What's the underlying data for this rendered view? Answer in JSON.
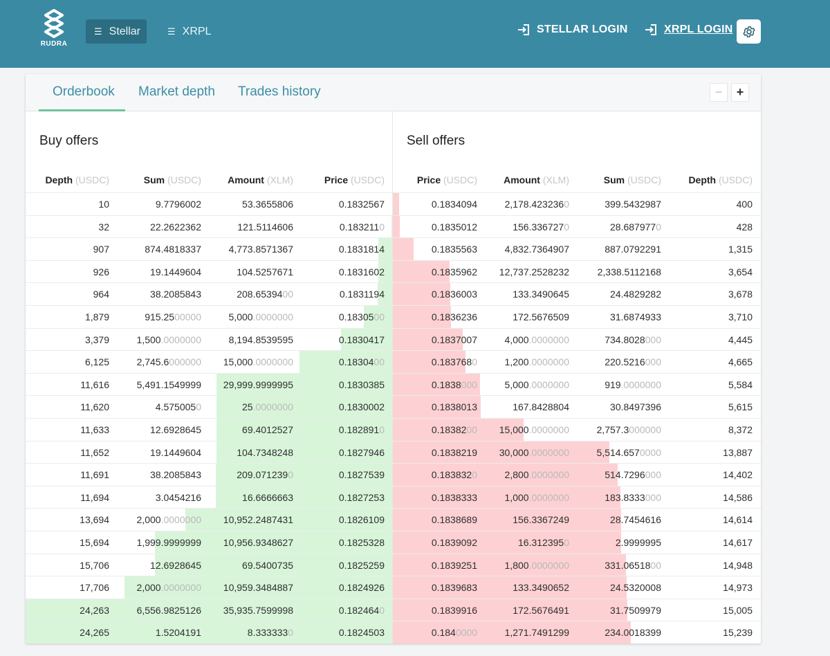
{
  "header": {
    "logo_text": "RUDRA",
    "networks": [
      {
        "label": "Stellar",
        "active": true
      },
      {
        "label": "XRPL",
        "active": false
      }
    ],
    "stellar_login": "STELLAR LOGIN",
    "xrpl_login": "XRPL LOGIN",
    "icons": {
      "menu": "menu-icon",
      "login": "login-icon",
      "settings": "gear-icon"
    }
  },
  "tabs": [
    "Orderbook",
    "Market depth",
    "Trades history"
  ],
  "zoom": {
    "minus": "−",
    "plus": "+"
  },
  "buy": {
    "title": "Buy offers",
    "columns": [
      {
        "label": "Depth",
        "unit": "(USDC)"
      },
      {
        "label": "Sum",
        "unit": "(USDC)"
      },
      {
        "label": "Amount",
        "unit": "(XLM)"
      },
      {
        "label": "Price",
        "unit": "(USDC)"
      }
    ],
    "rows": [
      {
        "depth": "10",
        "sum": [
          "9.7796002",
          ""
        ],
        "amount": [
          "53.3655806",
          ""
        ],
        "price": [
          "0.1832567",
          ""
        ],
        "fill": 0.0004
      },
      {
        "depth": "32",
        "sum": [
          "22.2622362",
          ""
        ],
        "amount": [
          "121.5114606",
          ""
        ],
        "price": [
          "0.183211",
          "0"
        ],
        "fill": 0.0013
      },
      {
        "depth": "907",
        "sum": [
          "874.4818337",
          ""
        ],
        "amount": [
          "4,773.8571367",
          ""
        ],
        "price": [
          "0.1831814",
          ""
        ],
        "fill": 0.037
      },
      {
        "depth": "926",
        "sum": [
          "19.1449604",
          ""
        ],
        "amount": [
          "104.5257671",
          ""
        ],
        "price": [
          "0.1831602",
          ""
        ],
        "fill": 0.038
      },
      {
        "depth": "964",
        "sum": [
          "38.2085843",
          ""
        ],
        "amount": [
          "208.65394",
          "00"
        ],
        "price": [
          "0.1831194",
          ""
        ],
        "fill": 0.04
      },
      {
        "depth": "1,879",
        "sum": [
          "915.25",
          "00000"
        ],
        "amount": [
          "5,000",
          ".0000000"
        ],
        "price": [
          "0.18305",
          "00"
        ],
        "fill": 0.077
      },
      {
        "depth": "3,379",
        "sum": [
          "1,500",
          ".0000000"
        ],
        "amount": [
          "8,194.8539595",
          ""
        ],
        "price": [
          "0.1830417",
          ""
        ],
        "fill": 0.139
      },
      {
        "depth": "6,125",
        "sum": [
          "2,745.6",
          "000000"
        ],
        "amount": [
          "15,000",
          ".0000000"
        ],
        "price": [
          "0.18304",
          "00"
        ],
        "fill": 0.252
      },
      {
        "depth": "11,616",
        "sum": [
          "5,491.1549999",
          ""
        ],
        "amount": [
          "29,999.9999995",
          ""
        ],
        "price": [
          "0.1830385",
          ""
        ],
        "fill": 0.479
      },
      {
        "depth": "11,620",
        "sum": [
          "4.575005",
          "0"
        ],
        "amount": [
          "25",
          ".0000000"
        ],
        "price": [
          "0.1830002",
          ""
        ],
        "fill": 0.479
      },
      {
        "depth": "11,633",
        "sum": [
          "12.6928645",
          ""
        ],
        "amount": [
          "69.4012527",
          ""
        ],
        "price": [
          "0.182891",
          "0"
        ],
        "fill": 0.479
      },
      {
        "depth": "11,652",
        "sum": [
          "19.1449604",
          ""
        ],
        "amount": [
          "104.7348248",
          ""
        ],
        "price": [
          "0.1827946",
          ""
        ],
        "fill": 0.48
      },
      {
        "depth": "11,691",
        "sum": [
          "38.2085843",
          ""
        ],
        "amount": [
          "209.071239",
          "0"
        ],
        "price": [
          "0.1827539",
          ""
        ],
        "fill": 0.482
      },
      {
        "depth": "11,694",
        "sum": [
          "3.0454216",
          ""
        ],
        "amount": [
          "16.6666663",
          ""
        ],
        "price": [
          "0.1827253",
          ""
        ],
        "fill": 0.482
      },
      {
        "depth": "13,694",
        "sum": [
          "2,000",
          ".0000000"
        ],
        "amount": [
          "10,952.2487431",
          ""
        ],
        "price": [
          "0.1826109",
          ""
        ],
        "fill": 0.564
      },
      {
        "depth": "15,694",
        "sum": [
          "1,999.9999999",
          ""
        ],
        "amount": [
          "10,956.9348627",
          ""
        ],
        "price": [
          "0.1825328",
          ""
        ],
        "fill": 0.647
      },
      {
        "depth": "15,706",
        "sum": [
          "12.6928645",
          ""
        ],
        "amount": [
          "69.5400735",
          ""
        ],
        "price": [
          "0.1825259",
          ""
        ],
        "fill": 0.647
      },
      {
        "depth": "17,706",
        "sum": [
          "2,000",
          ".0000000"
        ],
        "amount": [
          "10,959.3484887",
          ""
        ],
        "price": [
          "0.1824926",
          ""
        ],
        "fill": 0.73
      },
      {
        "depth": "24,263",
        "sum": [
          "6,556.9825126",
          ""
        ],
        "amount": [
          "35,935.7599998",
          ""
        ],
        "price": [
          "0.182464",
          "0"
        ],
        "fill": 1.0
      },
      {
        "depth": "24,265",
        "sum": [
          "1.5204191",
          ""
        ],
        "amount": [
          "8.333333",
          "0"
        ],
        "price": [
          "0.1824503",
          ""
        ],
        "fill": 1.0
      }
    ]
  },
  "sell": {
    "title": "Sell offers",
    "columns": [
      {
        "label": "Price",
        "unit": "(USDC)"
      },
      {
        "label": "Amount",
        "unit": "(XLM)"
      },
      {
        "label": "Sum",
        "unit": "(USDC)"
      },
      {
        "label": "Depth",
        "unit": "(USDC)"
      }
    ],
    "rows": [
      {
        "price": [
          "0.1834094",
          ""
        ],
        "amount": [
          "2,178.423236",
          "0"
        ],
        "sum": [
          "399.5432987",
          ""
        ],
        "depth": "400",
        "fill": 0.017
      },
      {
        "price": [
          "0.1835012",
          ""
        ],
        "amount": [
          "156.336727",
          "0"
        ],
        "sum": [
          "28.687977",
          "0"
        ],
        "depth": "428",
        "fill": 0.018
      },
      {
        "price": [
          "0.1835563",
          ""
        ],
        "amount": [
          "4,832.7364907",
          ""
        ],
        "sum": [
          "887.0792291",
          ""
        ],
        "depth": "1,315",
        "fill": 0.056
      },
      {
        "price": [
          "0.1835962",
          ""
        ],
        "amount": [
          "12,737.2528232",
          ""
        ],
        "sum": [
          "2,338.5112168",
          ""
        ],
        "depth": "3,654",
        "fill": 0.155
      },
      {
        "price": [
          "0.1836003",
          ""
        ],
        "amount": [
          "133.3490645",
          ""
        ],
        "sum": [
          "24.4829282",
          ""
        ],
        "depth": "3,678",
        "fill": 0.156
      },
      {
        "price": [
          "0.1836236",
          ""
        ],
        "amount": [
          "172.5676509",
          ""
        ],
        "sum": [
          "31.6874933",
          ""
        ],
        "depth": "3,710",
        "fill": 0.157
      },
      {
        "price": [
          "0.1837007",
          ""
        ],
        "amount": [
          "4,000",
          ".0000000"
        ],
        "sum": [
          "734.8028",
          "000"
        ],
        "depth": "4,445",
        "fill": 0.189
      },
      {
        "price": [
          "0.183768",
          "0"
        ],
        "amount": [
          "1,200",
          ".0000000"
        ],
        "sum": [
          "220.5216",
          "000"
        ],
        "depth": "4,665",
        "fill": 0.198
      },
      {
        "price": [
          "0.1838",
          "000"
        ],
        "amount": [
          "5,000",
          ".0000000"
        ],
        "sum": [
          "919",
          ".0000000"
        ],
        "depth": "5,584",
        "fill": 0.237
      },
      {
        "price": [
          "0.1838013",
          ""
        ],
        "amount": [
          "167.8428804",
          ""
        ],
        "sum": [
          "30.8497396",
          ""
        ],
        "depth": "5,615",
        "fill": 0.238
      },
      {
        "price": [
          "0.18382",
          "00"
        ],
        "amount": [
          "15,000",
          ".0000000"
        ],
        "sum": [
          "2,757.3",
          "000000"
        ],
        "depth": "8,372",
        "fill": 0.355
      },
      {
        "price": [
          "0.1838219",
          ""
        ],
        "amount": [
          "30,000",
          ".0000000"
        ],
        "sum": [
          "5,514.657",
          "0000"
        ],
        "depth": "13,887",
        "fill": 0.589
      },
      {
        "price": [
          "0.183832",
          "0"
        ],
        "amount": [
          "2,800",
          ".0000000"
        ],
        "sum": [
          "514.7296",
          "000"
        ],
        "depth": "14,402",
        "fill": 0.611
      },
      {
        "price": [
          "0.1838333",
          ""
        ],
        "amount": [
          "1,000",
          ".0000000"
        ],
        "sum": [
          "183.8333",
          "000"
        ],
        "depth": "14,586",
        "fill": 0.619
      },
      {
        "price": [
          "0.1838689",
          ""
        ],
        "amount": [
          "156.3367249",
          ""
        ],
        "sum": [
          "28.7454616",
          ""
        ],
        "depth": "14,614",
        "fill": 0.62
      },
      {
        "price": [
          "0.1839092",
          ""
        ],
        "amount": [
          "16.312395",
          "0"
        ],
        "sum": [
          "2.9999995",
          ""
        ],
        "depth": "14,617",
        "fill": 0.62
      },
      {
        "price": [
          "0.1839251",
          ""
        ],
        "amount": [
          "1,800",
          ".0000000"
        ],
        "sum": [
          "331.06518",
          "00"
        ],
        "depth": "14,948",
        "fill": 0.634
      },
      {
        "price": [
          "0.1839683",
          ""
        ],
        "amount": [
          "133.3490652",
          ""
        ],
        "sum": [
          "24.5320008",
          ""
        ],
        "depth": "14,973",
        "fill": 0.635
      },
      {
        "price": [
          "0.1839916",
          ""
        ],
        "amount": [
          "172.5676491",
          ""
        ],
        "sum": [
          "31.7509979",
          ""
        ],
        "depth": "15,005",
        "fill": 0.637
      },
      {
        "price": [
          "0.184",
          "0000"
        ],
        "amount": [
          "1,271.7491299",
          ""
        ],
        "sum": [
          "234.0018399",
          ""
        ],
        "depth": "15,239",
        "fill": 0.647
      }
    ]
  }
}
